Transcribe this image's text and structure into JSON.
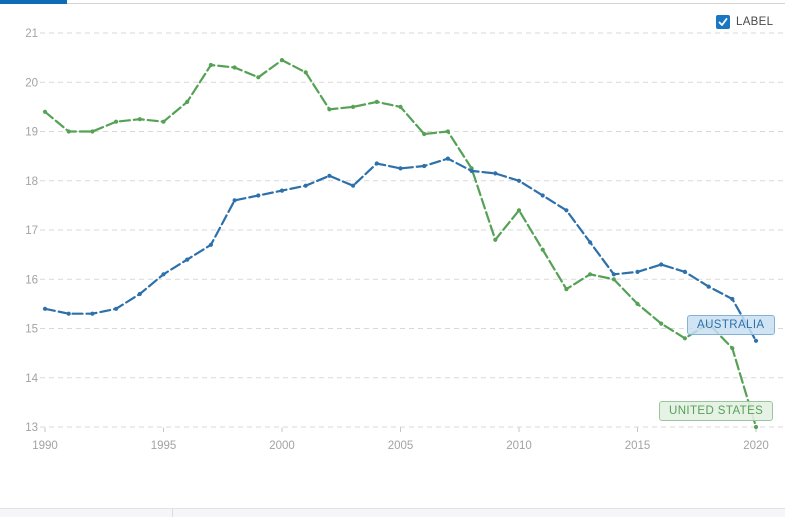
{
  "header": {
    "active_tab_color": "#0d6cb4"
  },
  "controls": {
    "label_checkbox": {
      "text": "LABEL",
      "checked": true,
      "accent_color": "#1a78c2"
    }
  },
  "chart_data": {
    "type": "line",
    "title": "",
    "xlabel": "",
    "ylabel": "",
    "xlim": [
      1990,
      2020
    ],
    "ylim": [
      13,
      21
    ],
    "grid": "horizontal-dashed",
    "legend_position": "inline-end-labels",
    "x": [
      1990,
      1991,
      1992,
      1993,
      1994,
      1995,
      1996,
      1997,
      1998,
      1999,
      2000,
      2001,
      2002,
      2003,
      2004,
      2005,
      2006,
      2007,
      2008,
      2009,
      2010,
      2011,
      2012,
      2013,
      2014,
      2015,
      2016,
      2017,
      2018,
      2019,
      2020
    ],
    "x_tick_labels": [
      "1990",
      "1995",
      "2000",
      "2005",
      "2010",
      "2015",
      "2020"
    ],
    "y_ticks": [
      21,
      20,
      19,
      18,
      17,
      16,
      15,
      14,
      13
    ],
    "series": [
      {
        "name": "Australia",
        "label": "AUSTRALIA",
        "color": "#2d70aa",
        "values": [
          15.4,
          15.3,
          15.3,
          15.4,
          15.7,
          16.1,
          16.4,
          16.7,
          17.6,
          17.7,
          17.8,
          17.9,
          18.1,
          17.9,
          18.35,
          18.25,
          18.3,
          18.45,
          18.2,
          18.15,
          18.0,
          17.7,
          17.4,
          16.75,
          16.1,
          16.15,
          16.3,
          16.15,
          15.85,
          15.6,
          14.75
        ]
      },
      {
        "name": "United States",
        "label": "UNITED STATES",
        "color": "#55a155",
        "values": [
          19.4,
          19.0,
          19.0,
          19.2,
          19.25,
          19.2,
          19.6,
          20.35,
          20.3,
          20.1,
          20.45,
          20.2,
          19.45,
          19.5,
          19.6,
          19.5,
          18.95,
          19.0,
          18.25,
          16.8,
          17.4,
          16.6,
          15.8,
          16.1,
          16.0,
          15.5,
          15.1,
          14.8,
          15.1,
          14.6,
          13.0
        ]
      }
    ]
  }
}
